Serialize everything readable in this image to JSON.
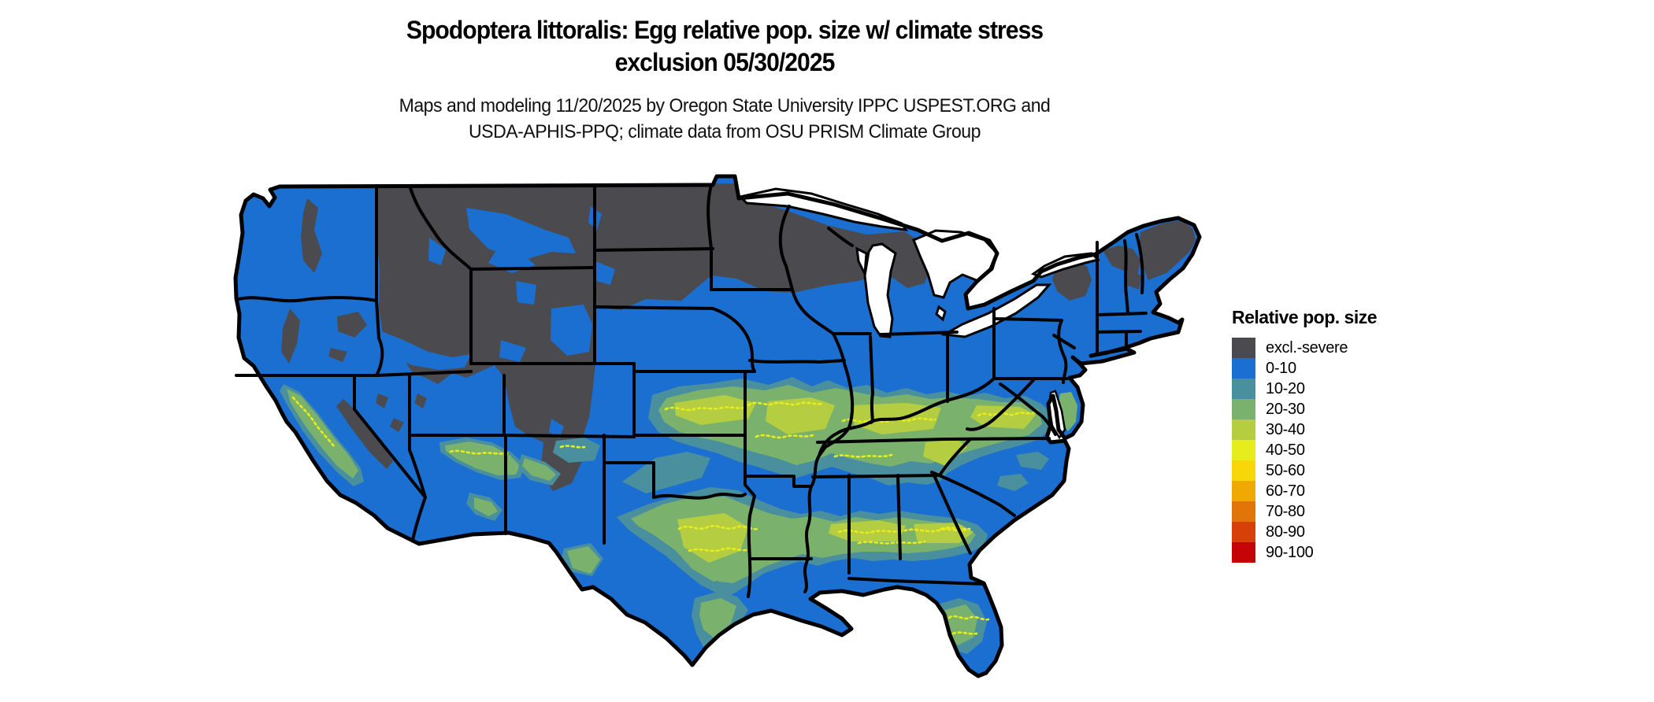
{
  "title": {
    "line1": "Spodoptera littoralis: Egg relative pop. size w/ climate stress",
    "line2": "exclusion 05/30/2025"
  },
  "subtitle": {
    "line1": "Maps and modeling 11/20/2025 by Oregon State University IPPC USPEST.ORG and",
    "line2": "USDA-APHIS-PPQ; climate data from OSU PRISM Climate Group"
  },
  "legend": {
    "title": "Relative pop. size",
    "items": [
      {
        "label": "excl.-severe",
        "color": "#4b4b4f"
      },
      {
        "label": "0-10",
        "color": "#1a6fd1"
      },
      {
        "label": "10-20",
        "color": "#4a8f9e"
      },
      {
        "label": "20-30",
        "color": "#7ab26d"
      },
      {
        "label": "30-40",
        "color": "#b4cd41"
      },
      {
        "label": "40-50",
        "color": "#e7ec1c"
      },
      {
        "label": "50-60",
        "color": "#f7d707"
      },
      {
        "label": "60-70",
        "color": "#f0a802"
      },
      {
        "label": "70-80",
        "color": "#e27507"
      },
      {
        "label": "80-90",
        "color": "#d8400a"
      },
      {
        "label": "90-100",
        "color": "#c50408"
      }
    ]
  },
  "map": {
    "region": "Continental United States",
    "water_color": "#ffffff",
    "border_color": "#000000"
  }
}
